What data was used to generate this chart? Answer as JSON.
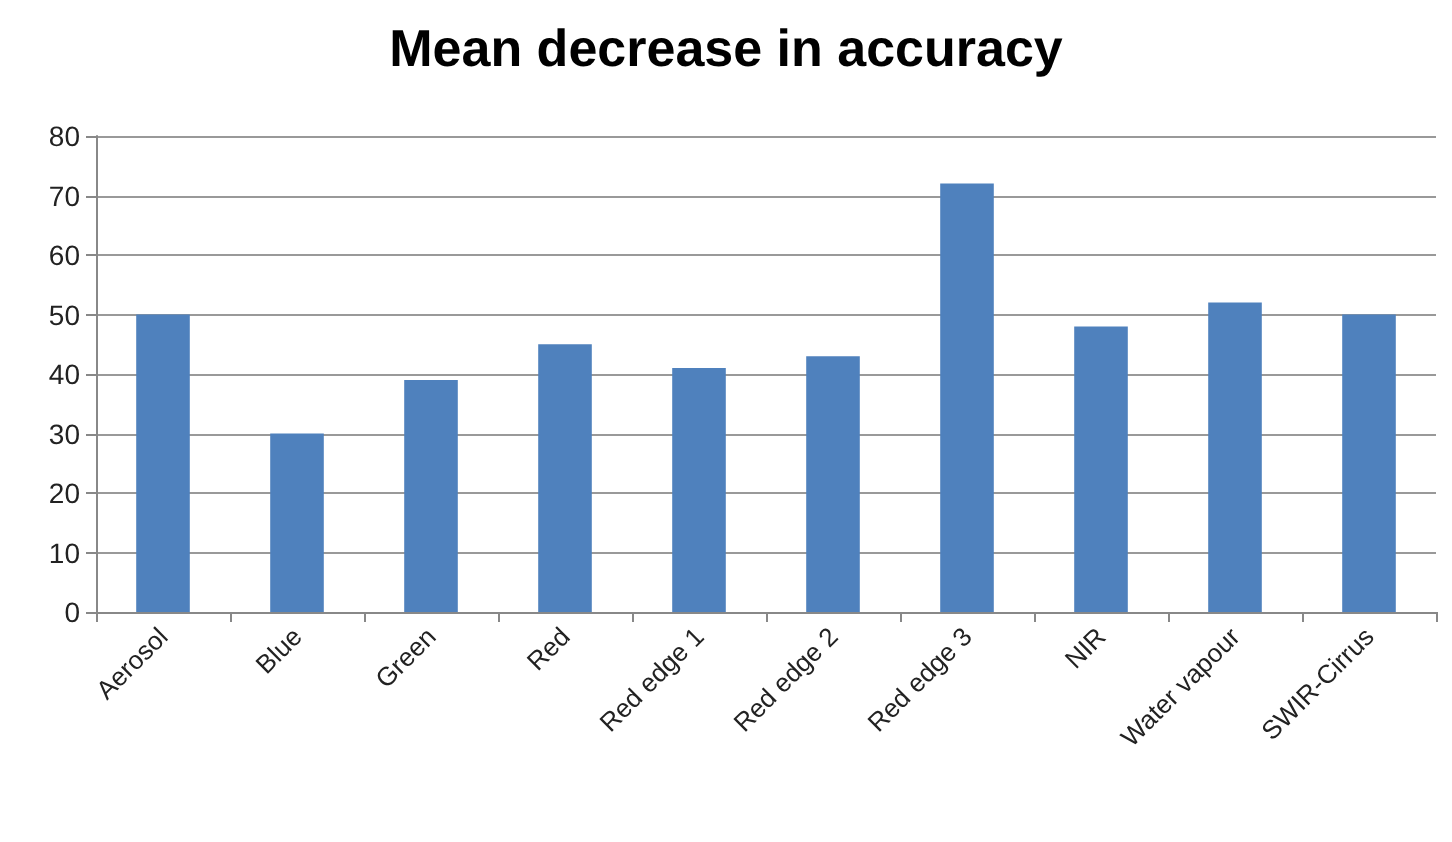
{
  "chart_data": {
    "type": "bar",
    "title": "Mean decrease in accuracy",
    "categories": [
      "Aerosol",
      "Blue",
      "Green",
      "Red",
      "Red edge 1",
      "Red edge 2",
      "Red edge 3",
      "NIR",
      "Water vapour",
      "SWIR-Cirrus"
    ],
    "values": [
      50,
      30,
      39,
      45,
      41,
      43,
      72,
      48,
      52,
      50
    ],
    "color": "#4f81bd",
    "ylim": [
      0,
      80
    ],
    "yticks": [
      0,
      10,
      20,
      30,
      40,
      50,
      60,
      70,
      80
    ],
    "grid": "y"
  }
}
